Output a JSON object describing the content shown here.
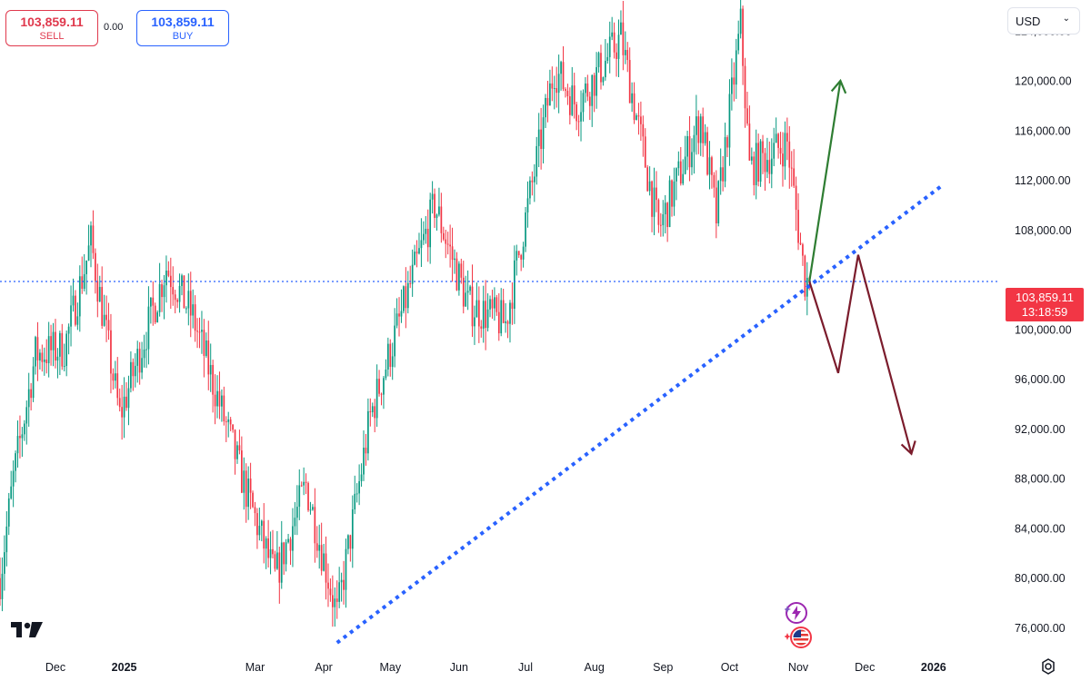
{
  "trade": {
    "sell_price": "103,859.11",
    "sell_label": "SELL",
    "spread": "0.00",
    "buy_price": "103,859.11",
    "buy_label": "BUY"
  },
  "currency": "USD",
  "current_price": {
    "price": "103,859.11",
    "countdown": "13:18:59"
  },
  "icons": {
    "logo": "tradingview-logo-icon",
    "settings": "gear-icon",
    "event1": "lightning-event-icon",
    "event2": "us-flag-event-icon",
    "currency_dropdown": "chevron-down-icon"
  },
  "colors": {
    "up": "#089981",
    "down": "#f23645",
    "trendline": "#2962ff",
    "bullish_arrow": "#2e7d32",
    "bearish_arrow": "#7b1c2c",
    "price_tag": "#f23645"
  },
  "chart_data": {
    "type": "candlestick",
    "y_axis_labels": [
      "124,000.00",
      "120,000.00",
      "116,000.00",
      "112,000.00",
      "108,000.00",
      "100,000.00",
      "96,000.00",
      "92,000.00",
      "88,000.00",
      "84,000.00",
      "80,000.00",
      "76,000.00"
    ],
    "y_axis_values": [
      124000,
      120000,
      116000,
      112000,
      108000,
      100000,
      96000,
      92000,
      88000,
      84000,
      80000,
      76000
    ],
    "ylim": [
      74500,
      126500
    ],
    "x_axis_labels": [
      {
        "label": "Dec",
        "date": "2024-12-01"
      },
      {
        "label": "2025",
        "date": "2025-01-01"
      },
      {
        "label": "Mar",
        "date": "2025-03-01"
      },
      {
        "label": "Apr",
        "date": "2025-04-01"
      },
      {
        "label": "May",
        "date": "2025-05-01"
      },
      {
        "label": "Jun",
        "date": "2025-06-01"
      },
      {
        "label": "Jul",
        "date": "2025-07-01"
      },
      {
        "label": "Aug",
        "date": "2025-08-01"
      },
      {
        "label": "Sep",
        "date": "2025-09-01"
      },
      {
        "label": "Oct",
        "date": "2025-10-01"
      },
      {
        "label": "Nov",
        "date": "2025-11-01"
      },
      {
        "label": "Dec",
        "date": "2025-12-01"
      },
      {
        "label": "2026",
        "date": "2026-01-01"
      }
    ],
    "xlim": [
      "2024-11-06",
      "2026-01-31"
    ],
    "price_path": [
      [
        "2024-11-06",
        80000
      ],
      [
        "2024-11-12",
        88000
      ],
      [
        "2024-11-22",
        98000
      ],
      [
        "2024-12-05",
        98500
      ],
      [
        "2024-12-17",
        107000
      ],
      [
        "2024-12-30",
        93000
      ],
      [
        "2025-01-20",
        105000
      ],
      [
        "2025-02-01",
        101000
      ],
      [
        "2025-02-25",
        87000
      ],
      [
        "2025-03-10",
        80000
      ],
      [
        "2025-03-24",
        87500
      ],
      [
        "2025-04-07",
        77000
      ],
      [
        "2025-04-22",
        93000
      ],
      [
        "2025-05-21",
        110000
      ],
      [
        "2025-06-05",
        102000
      ],
      [
        "2025-06-22",
        100500
      ],
      [
        "2025-07-14",
        121000
      ],
      [
        "2025-07-24",
        118000
      ],
      [
        "2025-08-13",
        123500
      ],
      [
        "2025-08-30",
        108000
      ],
      [
        "2025-09-18",
        117000
      ],
      [
        "2025-09-25",
        109000
      ],
      [
        "2025-10-06",
        124500
      ],
      [
        "2025-10-10",
        113000
      ],
      [
        "2025-10-27",
        115000
      ],
      [
        "2025-11-04",
        104000
      ],
      [
        "2025-11-06",
        103859.11
      ]
    ],
    "current_price": 103859.11,
    "support_trendline": [
      [
        "2025-04-07",
        74800
      ],
      [
        "2026-01-05",
        111600
      ]
    ],
    "bullish_projection": [
      [
        "2025-11-06",
        103859.11
      ],
      [
        "2025-11-20",
        120000
      ]
    ],
    "bearish_projection": [
      [
        "2025-11-06",
        103859.11
      ],
      [
        "2025-11-19",
        96500
      ],
      [
        "2025-11-28",
        106000
      ],
      [
        "2025-12-22",
        90000
      ]
    ]
  }
}
